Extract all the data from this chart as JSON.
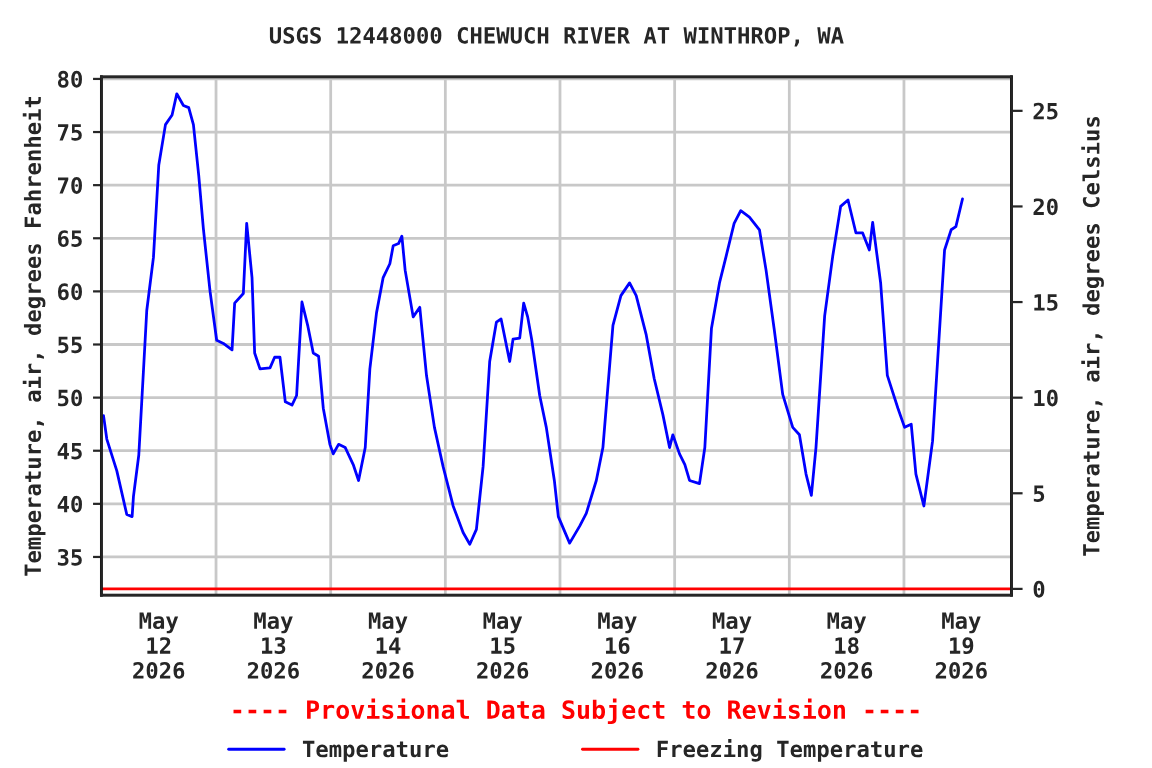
{
  "chart_data": {
    "type": "line",
    "title": "USGS 12448000 CHEWUCH RIVER AT WINTHROP, WA",
    "ylabel": "Temperature, air, degrees Fahrenheit",
    "y2label": "Temperature, air, degrees Celsius",
    "annotations": [
      "---- Provisional Data Subject to Revision ----"
    ],
    "xlim": [
      "2026-05-12T00:00",
      "2026-05-19T22:30"
    ],
    "xticks": [
      {
        "value": "2026-05-12T00:00",
        "label": null
      },
      {
        "value": "2026-05-12T12:00",
        "label": "May\n12\n2026"
      },
      {
        "value": "2026-05-13T00:00",
        "label": null
      },
      {
        "value": "2026-05-13T12:00",
        "label": "May\n13\n2026"
      },
      {
        "value": "2026-05-14T00:00",
        "label": null
      },
      {
        "value": "2026-05-14T12:00",
        "label": "May\n14\n2026"
      },
      {
        "value": "2026-05-15T00:00",
        "label": null
      },
      {
        "value": "2026-05-15T12:00",
        "label": "May\n15\n2026"
      },
      {
        "value": "2026-05-16T00:00",
        "label": null
      },
      {
        "value": "2026-05-16T12:00",
        "label": "May\n16\n2026"
      },
      {
        "value": "2026-05-17T00:00",
        "label": null
      },
      {
        "value": "2026-05-17T12:00",
        "label": "May\n17\n2026"
      },
      {
        "value": "2026-05-18T00:00",
        "label": null
      },
      {
        "value": "2026-05-18T12:00",
        "label": "May\n18\n2026"
      },
      {
        "value": "2026-05-19T00:00",
        "label": null
      },
      {
        "value": "2026-05-19T12:00",
        "label": "May\n19\n2026"
      }
    ],
    "ylim": [
      31.4,
      80.2
    ],
    "yticks": [
      35,
      40,
      45,
      50,
      55,
      60,
      65,
      70,
      75,
      80
    ],
    "y2lim": [
      -0.33,
      26.78
    ],
    "y2ticks": [
      0,
      5,
      10,
      15,
      20,
      25
    ],
    "grid": true,
    "legend": "bottom",
    "series": [
      {
        "name": "Temperature",
        "color": "#0000ff",
        "x": [
          "2026-05-12T00:27",
          "2026-05-12T01:08",
          "2026-05-12T03:14",
          "2026-05-12T05:19",
          "2026-05-12T06:26",
          "2026-05-12T06:43",
          "2026-05-12T07:50",
          "2026-05-12T08:49",
          "2026-05-12T09:30",
          "2026-05-12T10:54",
          "2026-05-12T12:01",
          "2026-05-12T13:25",
          "2026-05-12T14:48",
          "2026-05-12T15:47",
          "2026-05-12T17:10",
          "2026-05-12T18:17",
          "2026-05-12T19:16",
          "2026-05-12T20:23",
          "2026-05-12T21:21",
          "2026-05-12T22:45",
          "2026-05-13T00:08",
          "2026-05-13T01:32",
          "2026-05-13T03:21",
          "2026-05-13T03:54",
          "2026-05-13T05:43",
          "2026-05-13T06:25",
          "2026-05-13T07:32",
          "2026-05-13T08:05",
          "2026-05-13T09:12",
          "2026-05-13T11:18",
          "2026-05-13T12:16",
          "2026-05-13T13:23",
          "2026-05-13T14:30",
          "2026-05-13T15:54",
          "2026-05-13T16:52",
          "2026-05-13T17:59",
          "2026-05-13T19:14",
          "2026-05-13T20:21",
          "2026-05-13T21:28",
          "2026-05-13T22:27",
          "2026-05-13T23:50",
          "2026-05-14T00:32",
          "2026-05-14T01:39",
          "2026-05-14T03:03",
          "2026-05-14T04:43",
          "2026-05-14T05:50",
          "2026-05-14T07:14",
          "2026-05-14T08:12",
          "2026-05-14T09:36",
          "2026-05-14T10:59",
          "2026-05-14T12:23",
          "2026-05-14T13:05",
          "2026-05-14T14:12",
          "2026-05-14T14:54",
          "2026-05-14T15:35",
          "2026-05-14T17:16",
          "2026-05-14T18:39",
          "2026-05-14T20:03",
          "2026-05-14T21:43",
          "2026-05-14T23:32",
          "2026-05-15T01:38",
          "2026-05-15T03:43",
          "2026-05-15T05:07",
          "2026-05-15T06:30",
          "2026-05-15T07:54",
          "2026-05-15T09:17",
          "2026-05-15T10:41",
          "2026-05-15T11:40",
          "2026-05-15T13:28",
          "2026-05-15T14:10",
          "2026-05-15T15:34",
          "2026-05-15T16:24",
          "2026-05-15T17:14",
          "2026-05-15T18:04",
          "2026-05-15T19:45",
          "2026-05-15T21:08",
          "2026-05-15T22:49",
          "2026-05-15T23:39",
          "2026-05-16T02:01",
          "2026-05-16T04:07",
          "2026-05-16T05:30",
          "2026-05-16T07:36",
          "2026-05-16T08:59",
          "2026-05-16T11:05",
          "2026-05-16T12:45",
          "2026-05-16T14:34",
          "2026-05-16T15:57",
          "2026-05-16T18:03",
          "2026-05-16T19:43",
          "2026-05-16T21:32",
          "2026-05-16T22:56",
          "2026-05-16T23:37",
          "2026-05-17T01:01",
          "2026-05-17T02:08",
          "2026-05-17T03:07",
          "2026-05-17T05:12",
          "2026-05-17T06:19",
          "2026-05-17T07:42",
          "2026-05-17T09:23",
          "2026-05-17T10:46",
          "2026-05-17T12:27",
          "2026-05-17T13:50",
          "2026-05-17T15:39",
          "2026-05-17T17:45",
          "2026-05-17T19:08",
          "2026-05-17T20:49",
          "2026-05-17T22:37",
          "2026-05-18T00:43",
          "2026-05-18T02:07",
          "2026-05-18T03:30",
          "2026-05-18T04:37",
          "2026-05-18T05:35",
          "2026-05-18T07:24",
          "2026-05-18T09:05",
          "2026-05-18T10:45",
          "2026-05-18T12:17",
          "2026-05-18T13:57",
          "2026-05-18T15:21",
          "2026-05-18T16:45",
          "2026-05-18T17:27",
          "2026-05-18T19:07",
          "2026-05-18T20:31",
          "2026-05-18T22:44",
          "2026-05-19T00:08",
          "2026-05-19T01:31",
          "2026-05-19T02:30",
          "2026-05-19T04:10",
          "2026-05-19T05:59",
          "2026-05-19T08:30",
          "2026-05-19T09:53",
          "2026-05-19T10:52",
          "2026-05-19T12:15"
        ],
        "values": [
          48.3,
          46.1,
          43.1,
          39.0,
          38.8,
          40.7,
          44.6,
          52.6,
          58.2,
          63.2,
          71.9,
          75.7,
          76.6,
          78.6,
          77.5,
          77.3,
          75.7,
          70.9,
          65.9,
          60.0,
          55.4,
          55.1,
          54.5,
          58.9,
          59.8,
          66.4,
          61.3,
          54.2,
          52.7,
          52.8,
          53.8,
          53.8,
          49.6,
          49.3,
          50.2,
          59.0,
          56.7,
          54.2,
          53.9,
          49.0,
          45.6,
          44.7,
          45.6,
          45.3,
          43.7,
          42.2,
          45.3,
          52.7,
          58.0,
          61.3,
          62.6,
          64.3,
          64.5,
          65.2,
          62.0,
          57.6,
          58.5,
          52.1,
          47.2,
          43.5,
          39.8,
          37.3,
          36.2,
          37.6,
          43.5,
          53.4,
          57.1,
          57.4,
          53.4,
          55.5,
          55.6,
          58.9,
          57.6,
          55.5,
          50.2,
          47.2,
          42.2,
          38.8,
          36.3,
          37.9,
          39.1,
          42.2,
          45.3,
          56.8,
          59.6,
          60.8,
          59.6,
          55.9,
          51.8,
          48.4,
          45.3,
          46.5,
          44.7,
          43.7,
          42.2,
          41.9,
          45.3,
          56.5,
          60.8,
          63.3,
          66.4,
          67.6,
          67.0,
          65.8,
          62.0,
          56.5,
          50.3,
          47.2,
          46.5,
          42.8,
          40.8,
          45.3,
          57.7,
          63.3,
          68.0,
          68.6,
          65.5,
          65.5,
          63.9,
          66.5,
          60.8,
          52.1,
          49.0,
          47.2,
          47.5,
          42.8,
          39.8,
          45.9,
          63.9,
          65.8,
          66.1,
          68.7
        ]
      },
      {
        "name": "Freezing Temperature",
        "color": "#ff0000",
        "x": [
          "2026-05-12T00:00",
          "2026-05-19T22:30"
        ],
        "values": [
          32,
          32
        ]
      }
    ]
  }
}
